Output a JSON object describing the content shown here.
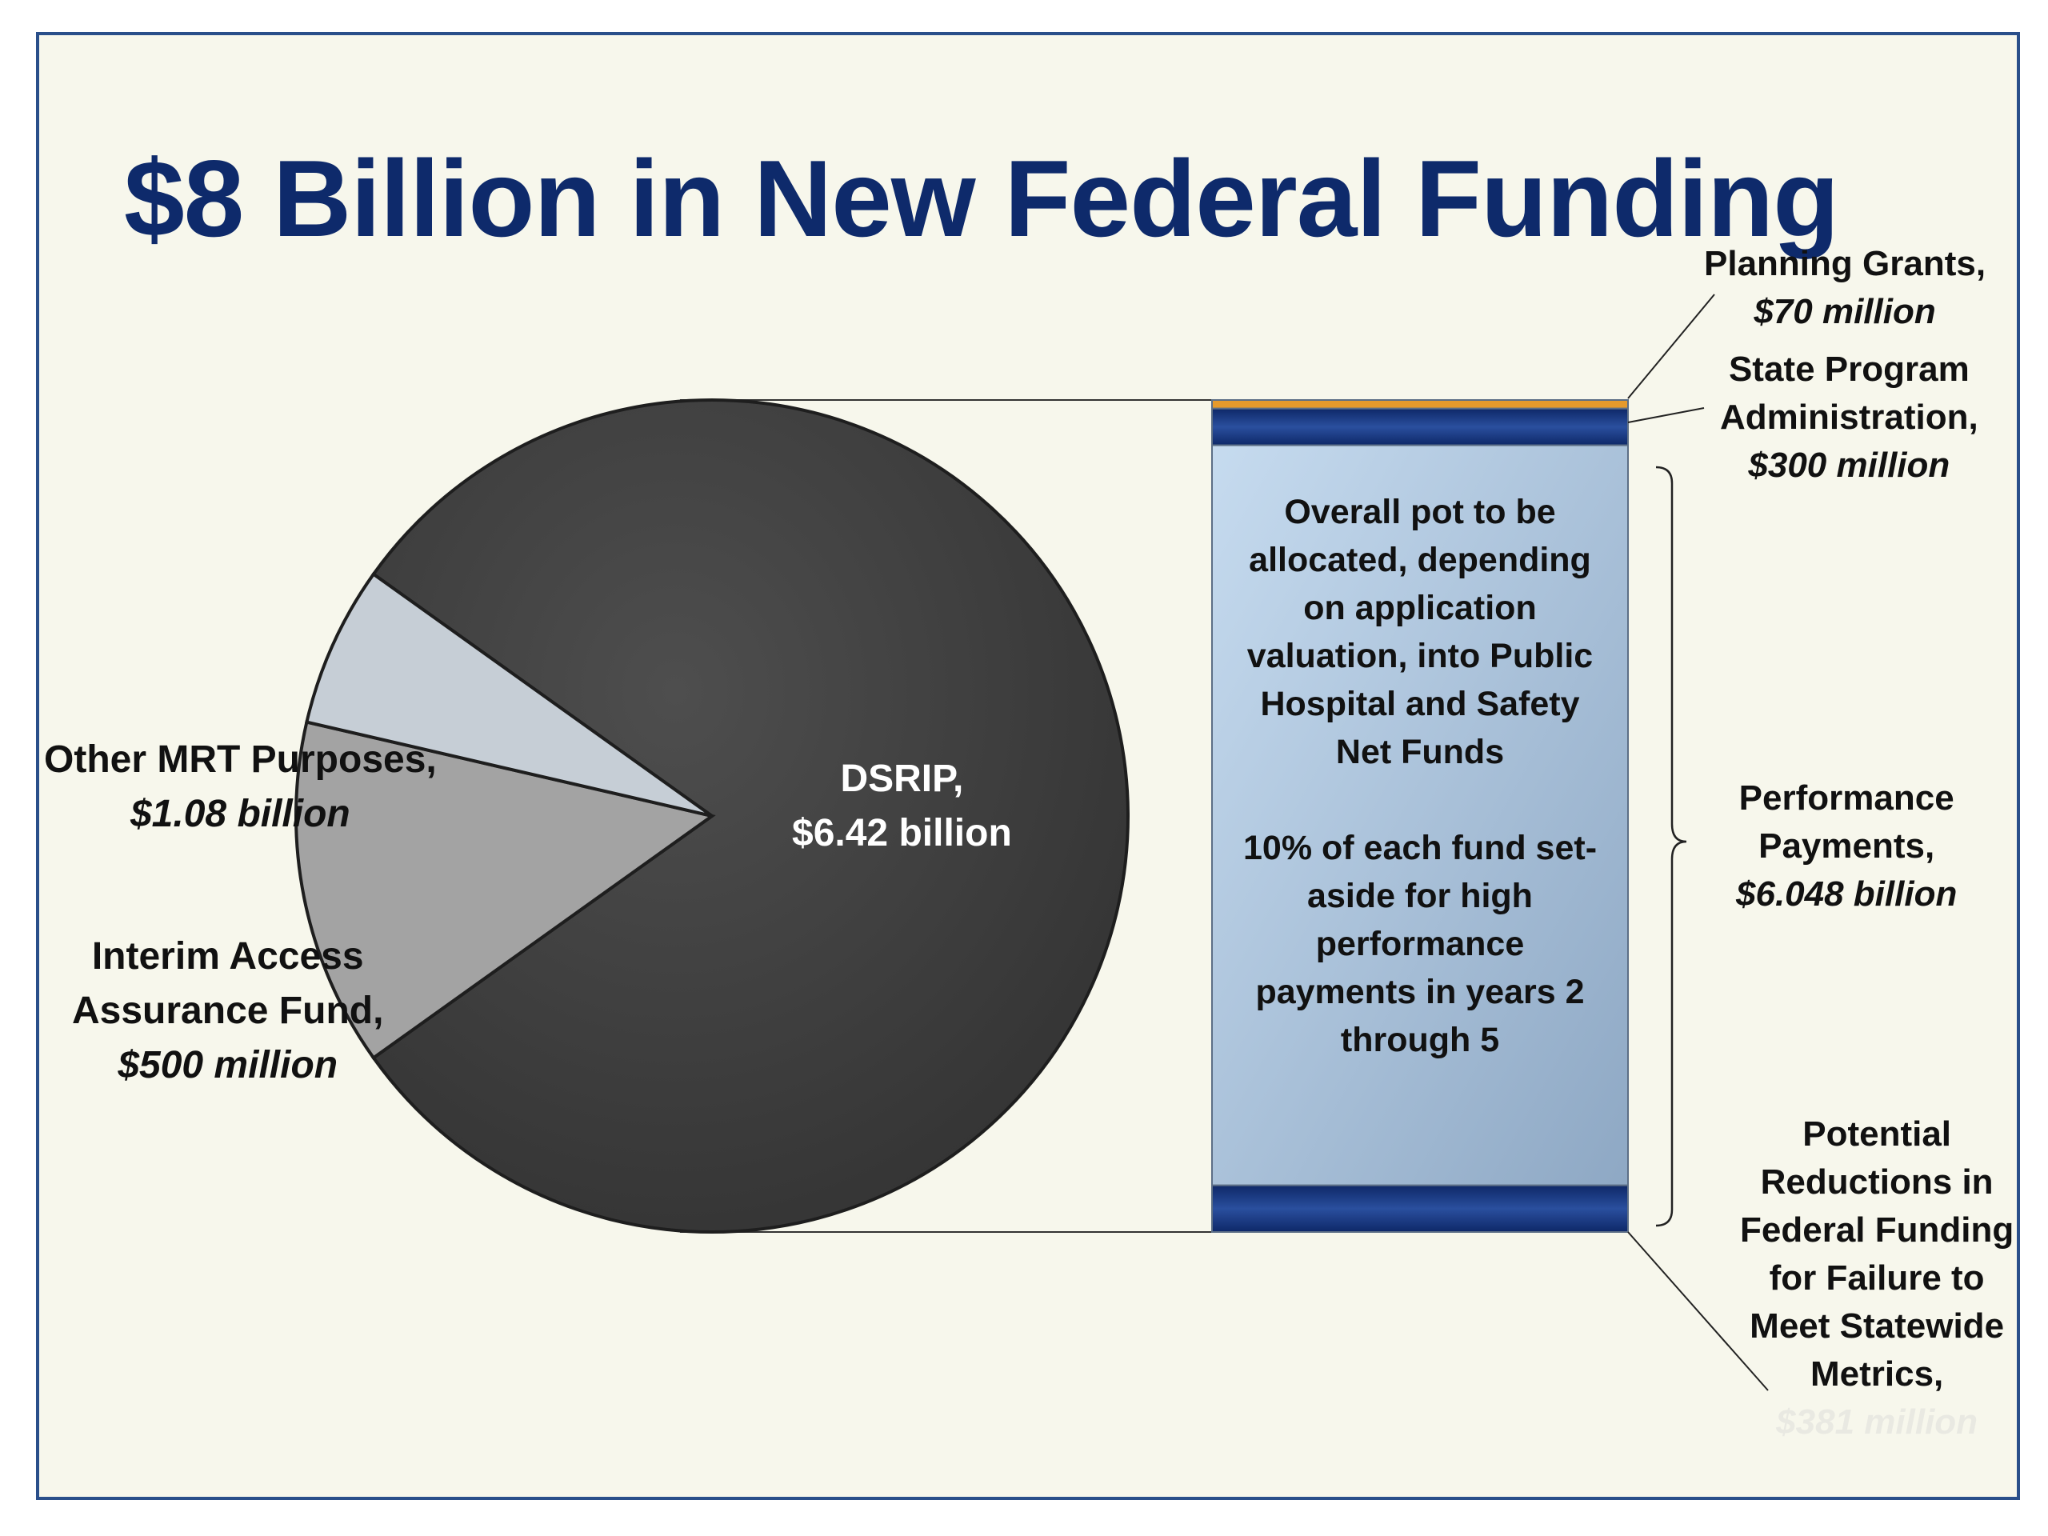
{
  "title": "$8 Billion in New Federal Funding",
  "colors": {
    "title": "#0e2a6b",
    "slide_background": "#f7f7ec",
    "border": "#2a4f8a",
    "dsrip_slice": "#434343",
    "other_mrt_slice": "#a3a3a3",
    "interim_slice": "#c6ced6",
    "bar_navy": "#1a3a86",
    "bar_orange": "#e69a2c",
    "bar_light_blue": "#b3cde4"
  },
  "chart_data": [
    {
      "type": "pie",
      "title": "$8 Billion in New Federal Funding",
      "slices": [
        {
          "name": "DSRIP",
          "label": "DSRIP,",
          "value_label": "$6.42 billion",
          "value": 6.42,
          "unit": "billion"
        },
        {
          "name": "Other MRT Purposes",
          "label": "Other MRT Purposes,",
          "value_label": "$1.08 billion",
          "value": 1.08,
          "unit": "billion"
        },
        {
          "name": "Interim Access Assurance Fund",
          "label_lines": [
            "Interim Access",
            "Assurance Fund,"
          ],
          "value_label": "$500 million",
          "value": 0.5,
          "unit": "billion"
        }
      ]
    },
    {
      "type": "bar",
      "stacked": true,
      "breakdown_of": "DSRIP",
      "segments": [
        {
          "name": "Planning Grants",
          "label": "Planning Grants,",
          "value_label": "$70 million",
          "value": 0.07,
          "unit": "billion"
        },
        {
          "name": "State Program Administration",
          "label_lines": [
            "State Program",
            "Administration,"
          ],
          "value_label": "$300 million",
          "value": 0.3,
          "unit": "billion"
        },
        {
          "name": "Performance Payments",
          "label_lines": [
            "Performance",
            "Payments,"
          ],
          "value_label": "$6.048 billion",
          "value": 6.048,
          "unit": "billion"
        },
        {
          "name": "Potential Reductions in Federal Funding for Failure to Meet Statewide Metrics",
          "label_lines": [
            "Potential",
            "Reductions in",
            "Federal Funding",
            "for Failure to",
            "Meet Statewide",
            "Metrics,"
          ],
          "value_label": "$381 million",
          "value": 0.381,
          "unit": "billion"
        }
      ],
      "box_text": {
        "paragraph1_lines": [
          "Overall pot to be",
          "allocated, depending",
          "on application",
          "valuation, into Public",
          "Hospital and Safety",
          "Net Funds"
        ],
        "paragraph2_lines": [
          "10% of each fund set-",
          "aside for high",
          "performance",
          "payments in years 2",
          "through 5"
        ]
      }
    }
  ]
}
